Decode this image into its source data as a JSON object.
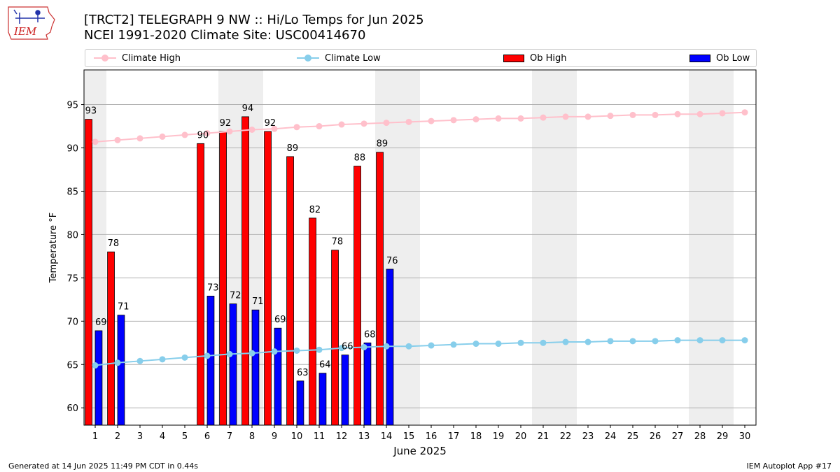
{
  "header": {
    "logo_text": "IEM",
    "title_line1": "[TRCT2] TELEGRAPH 9 NW :: Hi/Lo Temps for Jun 2025",
    "title_line2": "NCEI 1991-2020 Climate Site: USC00414670"
  },
  "legend": {
    "items": [
      {
        "label": "Climate High",
        "kind": "line",
        "color": "#ffc0cb"
      },
      {
        "label": "Climate Low",
        "kind": "line",
        "color": "#87ceeb"
      },
      {
        "label": "Ob High",
        "kind": "bar",
        "color": "#ff0000"
      },
      {
        "label": "Ob Low",
        "kind": "bar",
        "color": "#0000ff"
      }
    ]
  },
  "chart_data": {
    "type": "bar",
    "xlabel": "June 2025",
    "ylabel": "Temperature °F",
    "ylim": [
      58,
      99
    ],
    "yticks": [
      60,
      65,
      70,
      75,
      80,
      85,
      90,
      95
    ],
    "grid": "horizontal",
    "legend_position": "top",
    "weekend_shading_days": [
      1,
      7,
      8,
      14,
      15,
      21,
      22,
      28,
      29
    ],
    "days": [
      1,
      2,
      3,
      4,
      5,
      6,
      7,
      8,
      9,
      10,
      11,
      12,
      13,
      14,
      15,
      16,
      17,
      18,
      19,
      20,
      21,
      22,
      23,
      24,
      25,
      26,
      27,
      28,
      29,
      30
    ],
    "series": [
      {
        "name": "Ob High",
        "kind": "bar",
        "color": "#ff0000",
        "values": [
          93.3,
          78,
          null,
          null,
          null,
          90.5,
          91.9,
          93.6,
          91.9,
          89,
          81.9,
          78.2,
          87.9,
          89.5,
          null,
          null,
          null,
          null,
          null,
          null,
          null,
          null,
          null,
          null,
          null,
          null,
          null,
          null,
          null,
          null
        ],
        "labels": [
          "93",
          "78",
          null,
          null,
          null,
          "90",
          "92",
          "94",
          "92",
          "89",
          "82",
          "78",
          "88",
          "89",
          null,
          null,
          null,
          null,
          null,
          null,
          null,
          null,
          null,
          null,
          null,
          null,
          null,
          null,
          null,
          null
        ]
      },
      {
        "name": "Ob Low",
        "kind": "bar",
        "color": "#0000ff",
        "values": [
          68.9,
          70.7,
          null,
          null,
          null,
          72.9,
          72,
          71.3,
          69.2,
          63.1,
          64,
          66.1,
          67.5,
          76,
          null,
          null,
          null,
          null,
          null,
          null,
          null,
          null,
          null,
          null,
          null,
          null,
          null,
          null,
          null,
          null
        ],
        "labels": [
          "69",
          "71",
          null,
          null,
          null,
          "73",
          "72",
          "71",
          "69",
          "63",
          "64",
          "66",
          "68",
          "76",
          null,
          null,
          null,
          null,
          null,
          null,
          null,
          null,
          null,
          null,
          null,
          null,
          null,
          null,
          null,
          null
        ]
      },
      {
        "name": "Climate High",
        "kind": "line",
        "color": "#ffc0cb",
        "values": [
          90.7,
          90.9,
          91.1,
          91.3,
          91.5,
          91.7,
          91.9,
          92.1,
          92.2,
          92.4,
          92.5,
          92.7,
          92.8,
          92.9,
          93.0,
          93.1,
          93.2,
          93.3,
          93.4,
          93.4,
          93.5,
          93.6,
          93.6,
          93.7,
          93.8,
          93.8,
          93.9,
          93.9,
          94.0,
          94.1
        ]
      },
      {
        "name": "Climate Low",
        "kind": "line",
        "color": "#87ceeb",
        "values": [
          64.9,
          65.2,
          65.4,
          65.6,
          65.8,
          66.0,
          66.2,
          66.3,
          66.5,
          66.6,
          66.7,
          66.9,
          67.0,
          67.1,
          67.1,
          67.2,
          67.3,
          67.4,
          67.4,
          67.5,
          67.5,
          67.6,
          67.6,
          67.7,
          67.7,
          67.7,
          67.8,
          67.8,
          67.8,
          67.8
        ]
      }
    ]
  },
  "footer": {
    "generated": "Generated at 14 Jun 2025 11:49 PM CDT in 0.44s",
    "app": "IEM Autoplot App #17"
  }
}
